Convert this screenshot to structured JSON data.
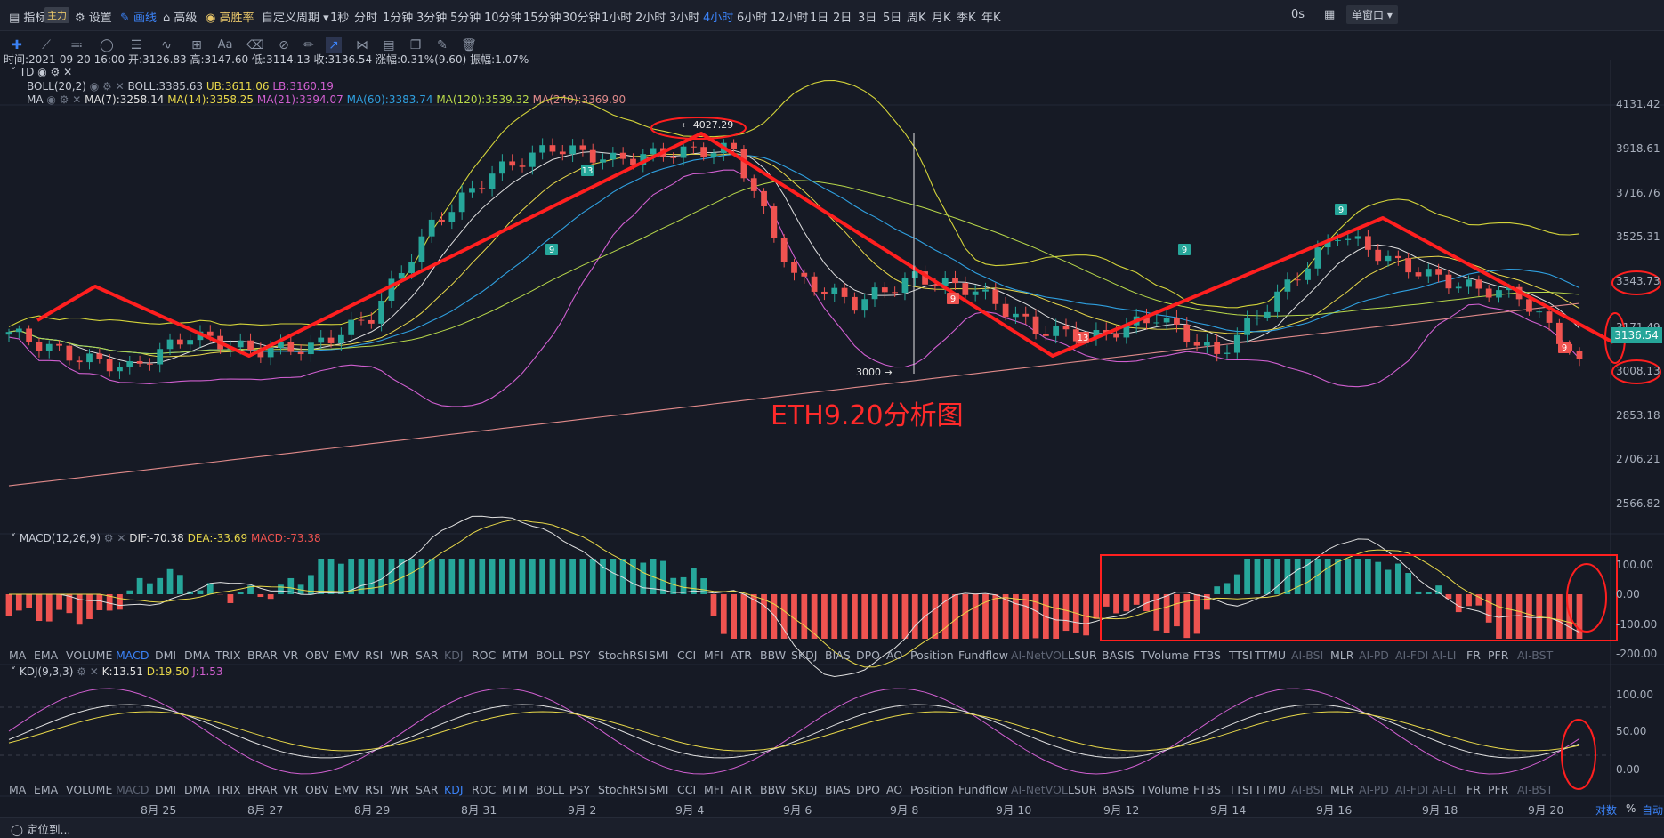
{
  "topbar": {
    "indicators_label": "指标",
    "main_badge": "主力",
    "settings_label": "设置",
    "draw_label": "画线",
    "advanced_label": "高级",
    "winrate_label": "高胜率",
    "custom_period_label": "自定义周期",
    "periods": [
      "1秒",
      "分时",
      "1分钟",
      "3分钟",
      "5分钟",
      "10分钟",
      "15分钟",
      "30分钟",
      "1小时",
      "2小时",
      "3小时",
      "4小时",
      "6小时",
      "12小时",
      "1日",
      "2日",
      "3日",
      "5日",
      "周K",
      "月K",
      "季K",
      "年K"
    ],
    "active_period": "4小时",
    "zoom": "0s",
    "window_mode": "单窗口"
  },
  "infobar": {
    "time_label": "时间:2021-09-20 16:00",
    "open": "开:3126.83",
    "high": "高:3147.60",
    "low": "低:3114.13",
    "close": "收:3136.54",
    "change": "涨幅:0.31%(9.60)",
    "amplitude": "振幅:1.07%"
  },
  "main_indicators": {
    "td": "TD",
    "boll_name": "BOLL(20,2)",
    "boll_mid": "BOLL:3385.63",
    "boll_ub": "UB:3611.06",
    "boll_lb": "LB:3160.19",
    "ma_name": "MA",
    "ma7": "MA(7):3258.14",
    "ma14": "MA(14):3358.25",
    "ma21": "MA(21):3394.07",
    "ma60": "MA(60):3383.74",
    "ma120": "MA(120):3539.32",
    "ma240": "MA(240):3369.90"
  },
  "colors": {
    "up": "#26a69a",
    "down": "#ef5350",
    "annotation": "#ff1f1f",
    "boll": "#d4d43a",
    "ma7": "#e0e0e0",
    "ma14": "#e8d84a",
    "ma21": "#d05fd0",
    "ma60": "#2fa0e0",
    "ma120": "#b8d84a",
    "ma240": "#e08a8a"
  },
  "annotations": {
    "title": "ETH9.20分析图",
    "high_marker": "← 4027.29",
    "low_marker": "3000 →",
    "td_marks": [
      "13",
      "9",
      "9",
      "13",
      "9",
      "9",
      "9"
    ]
  },
  "price_axis": {
    "ticks": [
      "4131.42",
      "3918.61",
      "3716.76",
      "3525.31",
      "3343.73",
      "3171.49",
      "3008.13",
      "2853.18",
      "2706.21",
      "2566.82"
    ],
    "current": "3136.54"
  },
  "macd": {
    "name": "MACD(12,26,9)",
    "dif": "DIF:-70.38",
    "dea": "DEA:-33.69",
    "macd": "MACD:-73.38",
    "ticks": [
      "100.00",
      "0.00",
      "-100.00",
      "-200.00"
    ]
  },
  "kdj": {
    "name": "KDJ(9,3,3)",
    "k": "K:13.51",
    "d": "D:19.50",
    "j": "J:1.53",
    "ticks": [
      "100.00",
      "50.00",
      "0.00"
    ]
  },
  "subtabs": [
    "MA",
    "EMA",
    "VOLUME",
    "MACD",
    "DMI",
    "DMA",
    "TRIX",
    "BRAR",
    "VR",
    "OBV",
    "EMV",
    "RSI",
    "WR",
    "SAR",
    "KDJ",
    "ROC",
    "MTM",
    "BOLL",
    "PSY",
    "StochRSI",
    "SMI",
    "CCI",
    "MFI",
    "ATR",
    "BBW",
    "SKDJ",
    "BIAS",
    "DPO",
    "AO",
    "Position",
    "Fundflow",
    "AI-NetVOL",
    "LSUR",
    "BASIS",
    "TVolume",
    "FTBS",
    "TTSI",
    "TTMU",
    "AI-BSI",
    "MLR",
    "AI-PD",
    "AI-FDI",
    "AI-LI",
    "FR",
    "PFR",
    "AI-BST"
  ],
  "date_axis": [
    "8月 25",
    "8月 27",
    "8月 29",
    "8月 31",
    "9月 2",
    "9月 4",
    "9月 6",
    "9月 8",
    "9月 10",
    "9月 12",
    "9月 14",
    "9月 16",
    "9月 18",
    "9月 20"
  ],
  "footer": {
    "locate": "定位到...",
    "log": "对数",
    "percent": "%",
    "auto": "自动"
  },
  "chart_data": {
    "type": "candlestick",
    "title": "ETH9.20分析图",
    "interval": "4小时",
    "ylim": [
      2500,
      4200
    ],
    "x": [
      "8月25",
      "8月26",
      "8月27",
      "8月28",
      "8月29",
      "8月30",
      "8月31",
      "9月1",
      "9月2",
      "9月3",
      "9月4",
      "9月5",
      "9月6",
      "9月7",
      "9月8",
      "9月9",
      "9月10",
      "9月11",
      "9月12",
      "9月13",
      "9月14",
      "9月15",
      "9月16",
      "9月17",
      "9月18",
      "9月19",
      "9月20"
    ],
    "close": [
      3240,
      3150,
      3100,
      3230,
      3170,
      3180,
      3300,
      3650,
      3850,
      3950,
      3900,
      3930,
      3940,
      3450,
      3350,
      3450,
      3400,
      3250,
      3220,
      3300,
      3150,
      3380,
      3620,
      3500,
      3420,
      3380,
      3136.54
    ],
    "high_marker": 4027.29,
    "low_marker": 3000,
    "last": {
      "time": "2021-09-20 16:00",
      "open": 3126.83,
      "high": 3147.6,
      "low": 3114.13,
      "close": 3136.54
    }
  }
}
